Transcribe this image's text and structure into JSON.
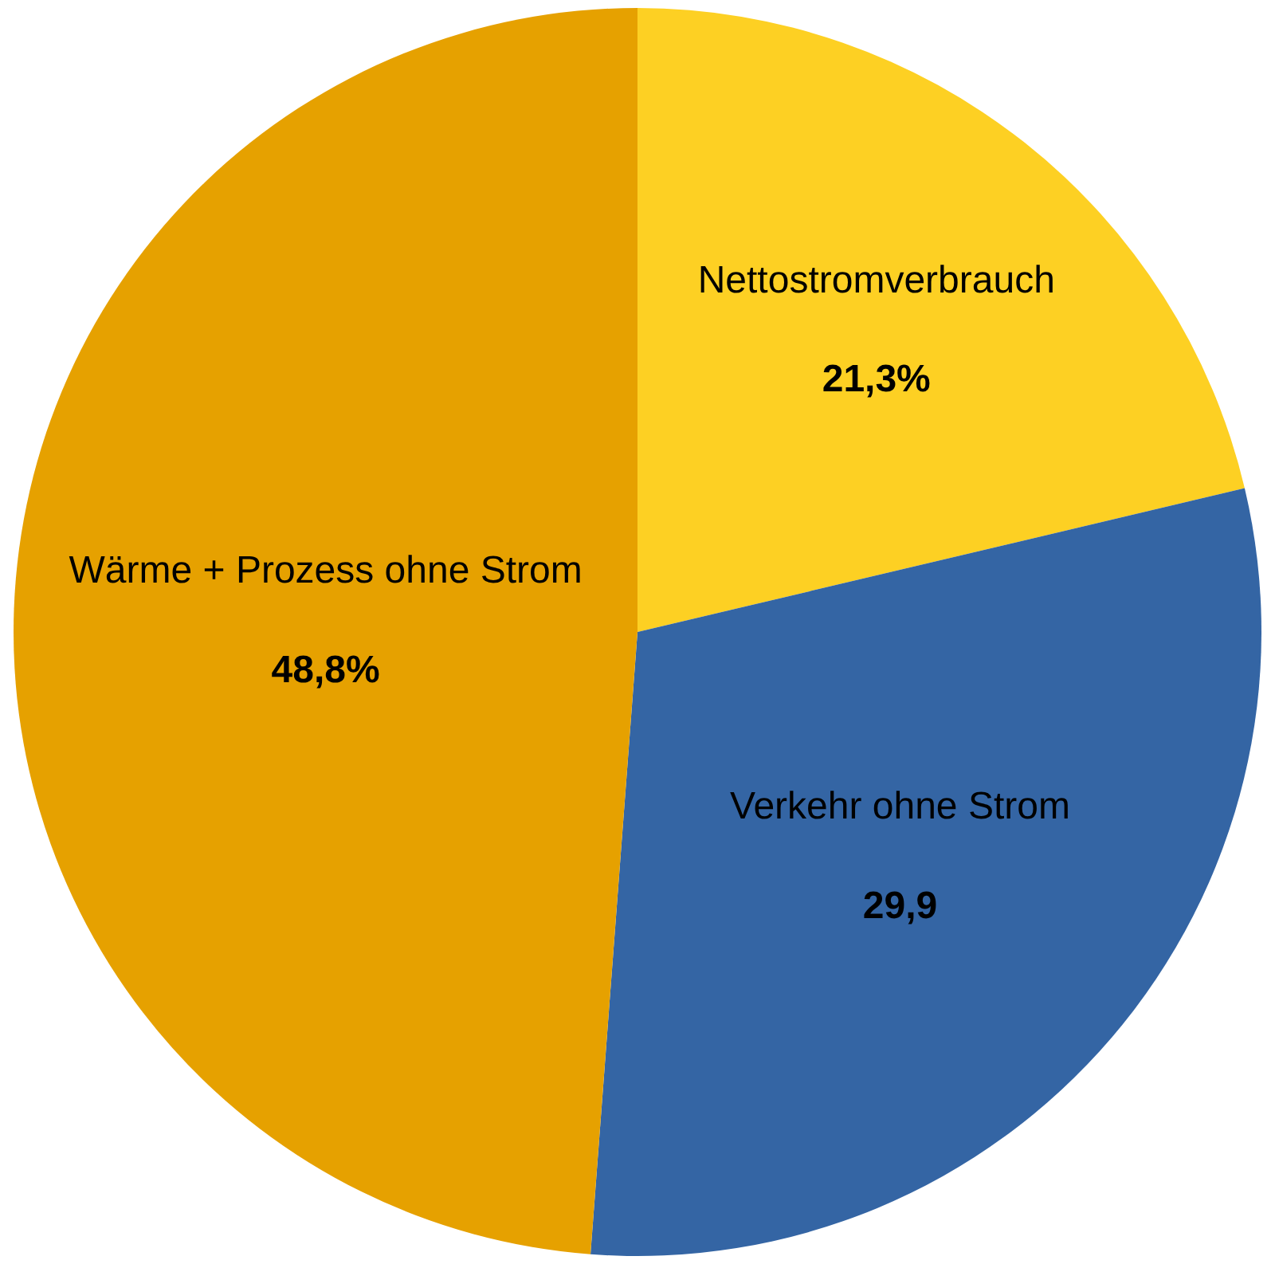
{
  "chart_data": {
    "type": "pie",
    "categories": [
      "Nettostromverbrauch",
      "Verkehr ohne Strom",
      "Wärme + Prozess ohne Strom"
    ],
    "values": [
      21.3,
      29.9,
      48.8
    ],
    "value_labels": [
      "21,3%",
      "29,9",
      "48,8%"
    ],
    "colors": [
      "#fdd023",
      "#3465a4",
      "#e6a100"
    ],
    "legend": false
  }
}
